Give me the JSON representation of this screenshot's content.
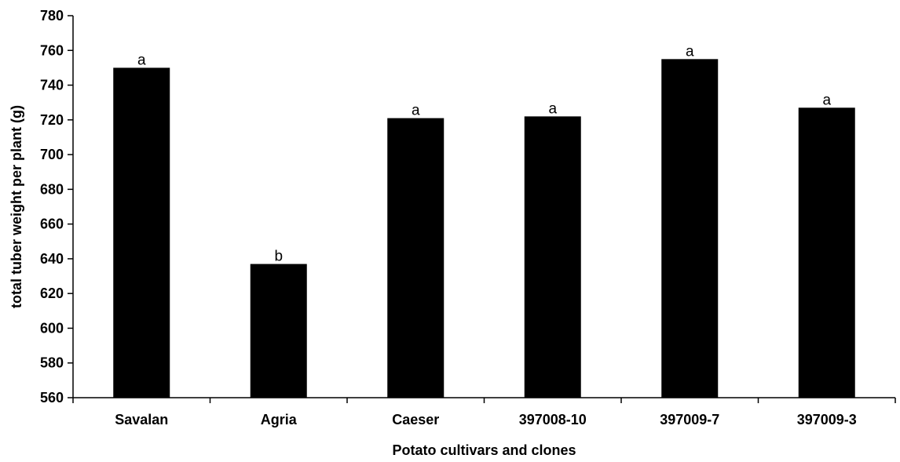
{
  "chart_data": {
    "type": "bar",
    "categories": [
      "Savalan",
      "Agria",
      "Caeser",
      "397008-10",
      "397009-7",
      "397009-3"
    ],
    "values": [
      750,
      637,
      721,
      722,
      755,
      727
    ],
    "annotations": [
      "a",
      "b",
      "a",
      "a",
      "a",
      "a"
    ],
    "xlabel": "Potato cultivars and clones",
    "ylabel": "total tuber weight per plant (g)",
    "ylim": [
      560,
      780
    ],
    "yticks": [
      560,
      580,
      600,
      620,
      640,
      660,
      680,
      700,
      720,
      740,
      760,
      780
    ],
    "grid": false,
    "bar_color": "#000000"
  }
}
